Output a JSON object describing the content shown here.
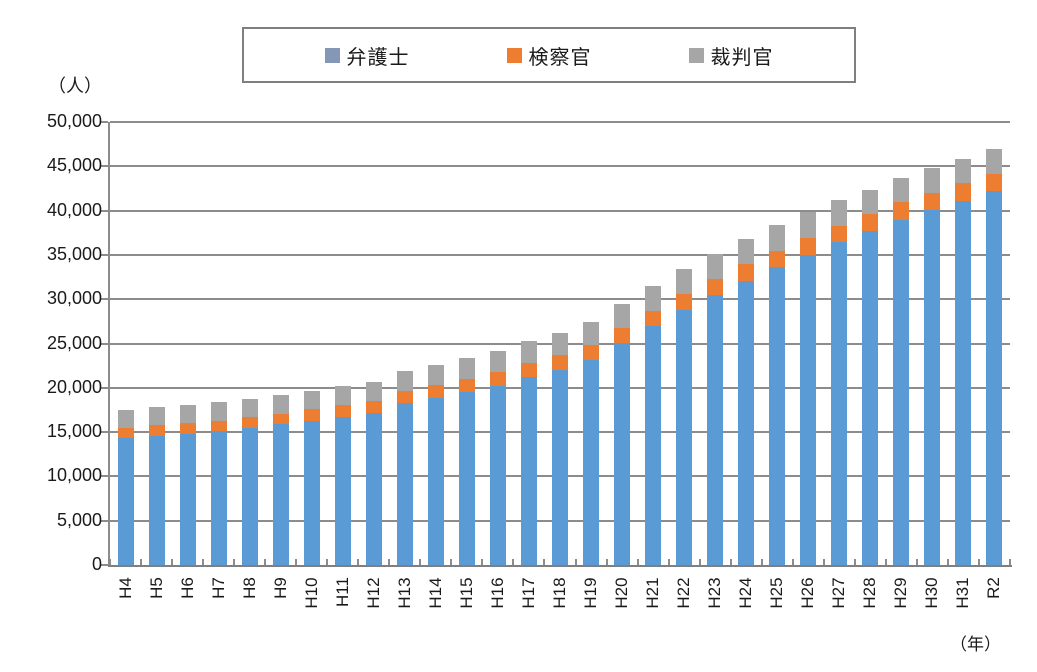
{
  "y_axis_unit": "（人）",
  "x_axis_unit": "（年）",
  "legend": {
    "items": [
      {
        "label": "弁護士",
        "swatch_color": "#8497B5"
      },
      {
        "label": "検察官",
        "swatch_color": "#ED7D31"
      },
      {
        "label": "裁判官",
        "swatch_color": "#A6A6A6"
      }
    ]
  },
  "chart_data": {
    "type": "bar",
    "stacked": true,
    "title": "",
    "xlabel": "（年）",
    "ylabel": "（人）",
    "categories": [
      "H4",
      "H5",
      "H6",
      "H7",
      "H8",
      "H9",
      "H10",
      "H11",
      "H12",
      "H13",
      "H14",
      "H15",
      "H16",
      "H17",
      "H18",
      "H19",
      "H20",
      "H21",
      "H22",
      "H23",
      "H24",
      "H25",
      "H26",
      "H27",
      "H28",
      "H29",
      "H30",
      "H31",
      "R2"
    ],
    "series": [
      {
        "name": "弁護士",
        "color": "#5B9BD5",
        "values": [
          14329,
          14596,
          14809,
          15108,
          15456,
          15866,
          16305,
          16731,
          17126,
          18243,
          18838,
          19508,
          20224,
          21185,
          22021,
          23119,
          25041,
          26930,
          28789,
          30485,
          32088,
          33624,
          35045,
          36415,
          37680,
          38980,
          40066,
          41118,
          42164
        ]
      },
      {
        "name": "検察官",
        "color": "#ED7D31",
        "values": [
          1173,
          1179,
          1173,
          1184,
          1204,
          1229,
          1274,
          1304,
          1375,
          1443,
          1487,
          1521,
          1563,
          1627,
          1648,
          1667,
          1739,
          1779,
          1806,
          1816,
          1839,
          1847,
          1877,
          1896,
          1930,
          1964,
          1957,
          1976,
          1977
        ]
      },
      {
        "name": "裁判官",
        "color": "#A6A6A6",
        "values": [
          2022,
          2029,
          2034,
          2058,
          2073,
          2093,
          2113,
          2143,
          2213,
          2243,
          2288,
          2333,
          2385,
          2460,
          2535,
          2610,
          2685,
          2760,
          2805,
          2850,
          2850,
          2880,
          2944,
          2944,
          2755,
          2775,
          2782,
          2774,
          2798
        ]
      }
    ],
    "ylim": [
      0,
      50000
    ],
    "ytick_step": 5000,
    "ytick_labels": [
      "0",
      "5,000",
      "10,000",
      "15,000",
      "20,000",
      "25,000",
      "30,000",
      "35,000",
      "40,000",
      "45,000",
      "50,000"
    ],
    "grid": true,
    "legend_position": "top"
  }
}
